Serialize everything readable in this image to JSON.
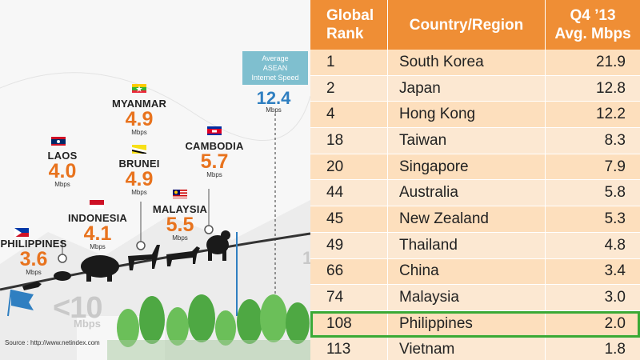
{
  "infographic": {
    "countries": [
      {
        "name": "PHILIPPINES",
        "speed": "3.6",
        "unit": "Mbps"
      },
      {
        "name": "LAOS",
        "speed": "4.0",
        "unit": "Mbps"
      },
      {
        "name": "INDONESIA",
        "speed": "4.1",
        "unit": "Mbps"
      },
      {
        "name": "MYANMAR",
        "speed": "4.9",
        "unit": "Mbps"
      },
      {
        "name": "BRUNEI",
        "speed": "4.9",
        "unit": "Mbps"
      },
      {
        "name": "MALAYSIA",
        "speed": "5.5",
        "unit": "Mbps"
      },
      {
        "name": "CAMBODIA",
        "speed": "5.7",
        "unit": "Mbps"
      }
    ],
    "average": {
      "label_line1": "Average",
      "label_line2": "ASEAN",
      "label_line3": "Internet Speed",
      "speed": "12.4",
      "unit": "Mbps"
    },
    "threshold": {
      "label": "<10",
      "unit": "Mbps"
    },
    "source": "Source : http://www.netindex.com",
    "colors": {
      "speed": "#e8731e",
      "average": "#2f7fc1",
      "avg_box": "#7fbfcf"
    }
  },
  "chart_data": {
    "type": "table",
    "columns": [
      "Global Rank",
      "Country/Region",
      "Q4 ’13 Avg. Mbps"
    ],
    "header": {
      "rank_line1": "Global",
      "rank_line2": "Rank",
      "country": "Country/Region",
      "speed_line1": "Q4 ’13",
      "speed_line2": "Avg. Mbps"
    },
    "rows": [
      {
        "rank": "1",
        "country": "South Korea",
        "speed": "21.9"
      },
      {
        "rank": "2",
        "country": "Japan",
        "speed": "12.8"
      },
      {
        "rank": "4",
        "country": "Hong Kong",
        "speed": "12.2"
      },
      {
        "rank": "18",
        "country": "Taiwan",
        "speed": "8.3"
      },
      {
        "rank": "20",
        "country": "Singapore",
        "speed": "7.9"
      },
      {
        "rank": "44",
        "country": "Australia",
        "speed": "5.8"
      },
      {
        "rank": "45",
        "country": "New Zealand",
        "speed": "5.3"
      },
      {
        "rank": "49",
        "country": "Thailand",
        "speed": "4.8"
      },
      {
        "rank": "66",
        "country": "China",
        "speed": "3.4"
      },
      {
        "rank": "74",
        "country": "Malaysia",
        "speed": "3.0"
      },
      {
        "rank": "108",
        "country": "Philippines",
        "speed": "2.0"
      },
      {
        "rank": "113",
        "country": "Vietnam",
        "speed": "1.8"
      }
    ],
    "highlighted_row": "Philippines",
    "colors": {
      "header": "#ef8e35",
      "row_odd": "#fddfbd",
      "row_even": "#fce8d2",
      "highlight": "#39a935"
    }
  }
}
